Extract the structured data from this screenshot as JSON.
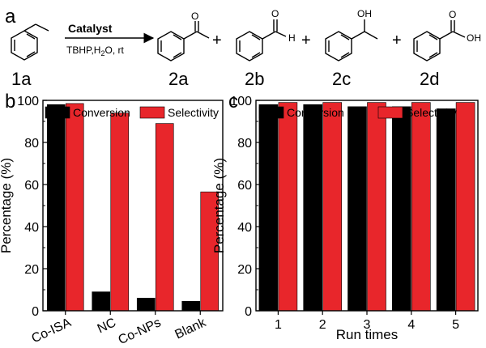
{
  "panel_labels": {
    "a": "a",
    "b": "b",
    "c": "c"
  },
  "reaction": {
    "reactant": "1a",
    "arrow_label": "Catalyst",
    "conditions_prefix": "TBHP,H",
    "conditions_sub": "2",
    "conditions_suffix": "O, rt",
    "plus": "+",
    "products": [
      "2a",
      "2b",
      "2c",
      "2d"
    ],
    "atom_labels": {
      "o": "O",
      "h": "H",
      "oh": "OH"
    }
  },
  "colors": {
    "conversion": "#000000",
    "selectivity": "#e8262b"
  },
  "chart_data": [
    {
      "panel": "b",
      "type": "bar",
      "categories": [
        "Co-ISA",
        "NC",
        "Co-NPs",
        "Blank"
      ],
      "series": [
        {
          "name": "Conversion",
          "values": [
            98,
            9,
            6,
            4.5
          ]
        },
        {
          "name": "Selectivity",
          "values": [
            98.5,
            94,
            89,
            56.5
          ]
        }
      ],
      "ylabel": "Percentage (%)",
      "xlabel": "",
      "ylim": [
        0,
        100
      ],
      "yticks": [
        "0",
        "20",
        "40",
        "60",
        "80",
        "100"
      ],
      "legend": "top"
    },
    {
      "panel": "c",
      "type": "bar",
      "categories": [
        "1",
        "2",
        "3",
        "4",
        "5"
      ],
      "series": [
        {
          "name": "Conversion",
          "values": [
            98,
            98,
            97,
            97,
            96
          ]
        },
        {
          "name": "Selectivity",
          "values": [
            99,
            99,
            99,
            99,
            99
          ]
        }
      ],
      "ylabel": "Percentage (%)",
      "xlabel": "Run times",
      "ylim": [
        0,
        100
      ],
      "yticks": [
        "0",
        "20",
        "40",
        "60",
        "80",
        "100"
      ],
      "legend": "top"
    }
  ]
}
